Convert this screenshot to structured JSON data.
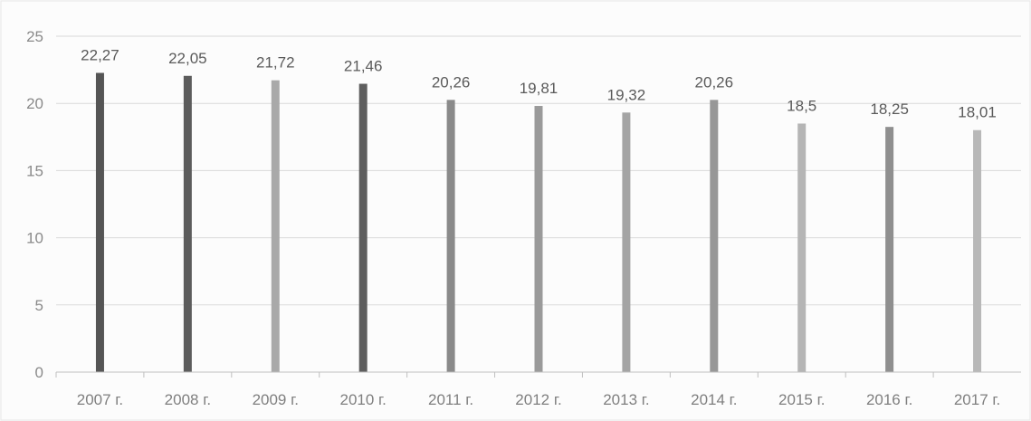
{
  "chart_data": {
    "type": "bar",
    "categories": [
      "2007 г.",
      "2008 г.",
      "2009 г.",
      "2010 г.",
      "2011 г.",
      "2012 г.",
      "2013 г.",
      "2014 г.",
      "2015 г.",
      "2016 г.",
      "2017 г."
    ],
    "values": [
      22.27,
      22.05,
      21.72,
      21.46,
      20.26,
      19.81,
      19.32,
      20.26,
      18.5,
      18.25,
      18.01
    ],
    "data_labels": [
      "22,27",
      "22,05",
      "21,72",
      "21,46",
      "20,26",
      "19,81",
      "19,32",
      "20,26",
      "18,5",
      "18,25",
      "18,01"
    ],
    "y_ticks": [
      "0",
      "5",
      "10",
      "15",
      "20",
      "25"
    ],
    "ylim": [
      0,
      25
    ],
    "grid": true,
    "legend": "none",
    "colors": {
      "bars": [
        "#555555",
        "#5c5c5c",
        "#a9a9a9",
        "#5e5e5e",
        "#8a8a8a",
        "#9a9a9a",
        "#a4a4a4",
        "#979797",
        "#b5b5b5",
        "#8f8f8f",
        "#b8b8b8"
      ],
      "grid": "#d9d9d9",
      "axis": "#bfbfbf"
    }
  }
}
